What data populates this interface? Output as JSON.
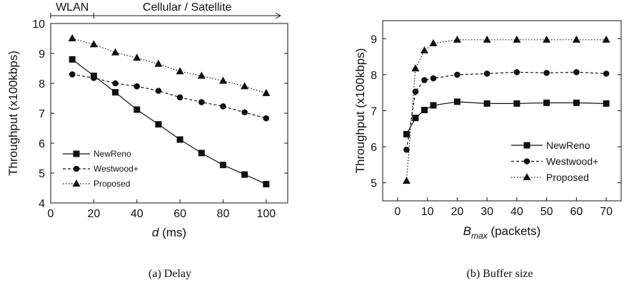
{
  "chart_data": [
    {
      "type": "line",
      "caption": "(a) Delay",
      "xlabel_italic": "d",
      "xlabel": " (ms)",
      "ylabel": "Throughput (x100kbps)",
      "xlim": [
        0,
        110
      ],
      "ylim": [
        4,
        10
      ],
      "xticks": [
        0,
        20,
        40,
        60,
        80,
        100
      ],
      "yticks": [
        4,
        5,
        6,
        7,
        8,
        9,
        10
      ],
      "grid": false,
      "legend": "bottom-left",
      "bands": [
        {
          "label": "WLAN",
          "from": 0,
          "to": 20
        },
        {
          "label": "Cellular / Satellite",
          "from": 20,
          "to": 110
        }
      ],
      "series": [
        {
          "name": "NewReno",
          "marker": "square",
          "dash": "solid",
          "x": [
            10,
            20,
            30,
            40,
            50,
            60,
            70,
            80,
            90,
            100
          ],
          "values": [
            8.8,
            8.25,
            7.7,
            7.12,
            6.63,
            6.12,
            5.67,
            5.27,
            4.95,
            4.63
          ]
        },
        {
          "name": "Westwood+",
          "marker": "circle",
          "dash": "dashed",
          "x": [
            10,
            20,
            30,
            40,
            50,
            60,
            70,
            80,
            90,
            100
          ],
          "values": [
            8.3,
            8.18,
            8.0,
            7.9,
            7.75,
            7.53,
            7.37,
            7.23,
            7.03,
            6.83
          ]
        },
        {
          "name": "Proposed",
          "marker": "triangle",
          "dash": "dotted",
          "x": [
            10,
            20,
            30,
            40,
            50,
            60,
            70,
            80,
            90,
            100
          ],
          "values": [
            9.5,
            9.3,
            9.03,
            8.85,
            8.65,
            8.4,
            8.25,
            8.08,
            7.9,
            7.67
          ]
        }
      ]
    },
    {
      "type": "line",
      "caption": "(b) Buffer size",
      "xlabel_main": "B",
      "xlabel_sub": "max",
      "xlabel": " (packets)",
      "ylabel": "Throughput (x100kbps)",
      "xlim": [
        -5,
        75
      ],
      "ylim": [
        4.5,
        9.5
      ],
      "xticks": [
        0,
        10,
        20,
        30,
        40,
        50,
        60,
        70
      ],
      "yticks": [
        5,
        6,
        7,
        8,
        9
      ],
      "grid": false,
      "legend": "bottom-right",
      "series": [
        {
          "name": "NewReno",
          "marker": "square",
          "dash": "solid",
          "x": [
            3,
            6,
            9,
            12,
            20,
            30,
            40,
            50,
            60,
            70
          ],
          "values": [
            6.35,
            6.8,
            7.02,
            7.15,
            7.25,
            7.2,
            7.2,
            7.22,
            7.22,
            7.2
          ]
        },
        {
          "name": "Westwood+",
          "marker": "circle",
          "dash": "dashed",
          "x": [
            3,
            6,
            9,
            12,
            20,
            30,
            40,
            50,
            60,
            70
          ],
          "values": [
            5.92,
            7.53,
            7.85,
            7.9,
            8.0,
            8.03,
            8.07,
            8.05,
            8.07,
            8.03
          ]
        },
        {
          "name": "Proposed",
          "marker": "triangle",
          "dash": "dotted",
          "x": [
            3,
            6,
            9,
            12,
            20,
            30,
            40,
            50,
            60,
            70
          ],
          "values": [
            5.05,
            8.17,
            8.67,
            8.87,
            8.97,
            8.97,
            8.97,
            8.97,
            8.97,
            8.97
          ]
        }
      ]
    }
  ]
}
